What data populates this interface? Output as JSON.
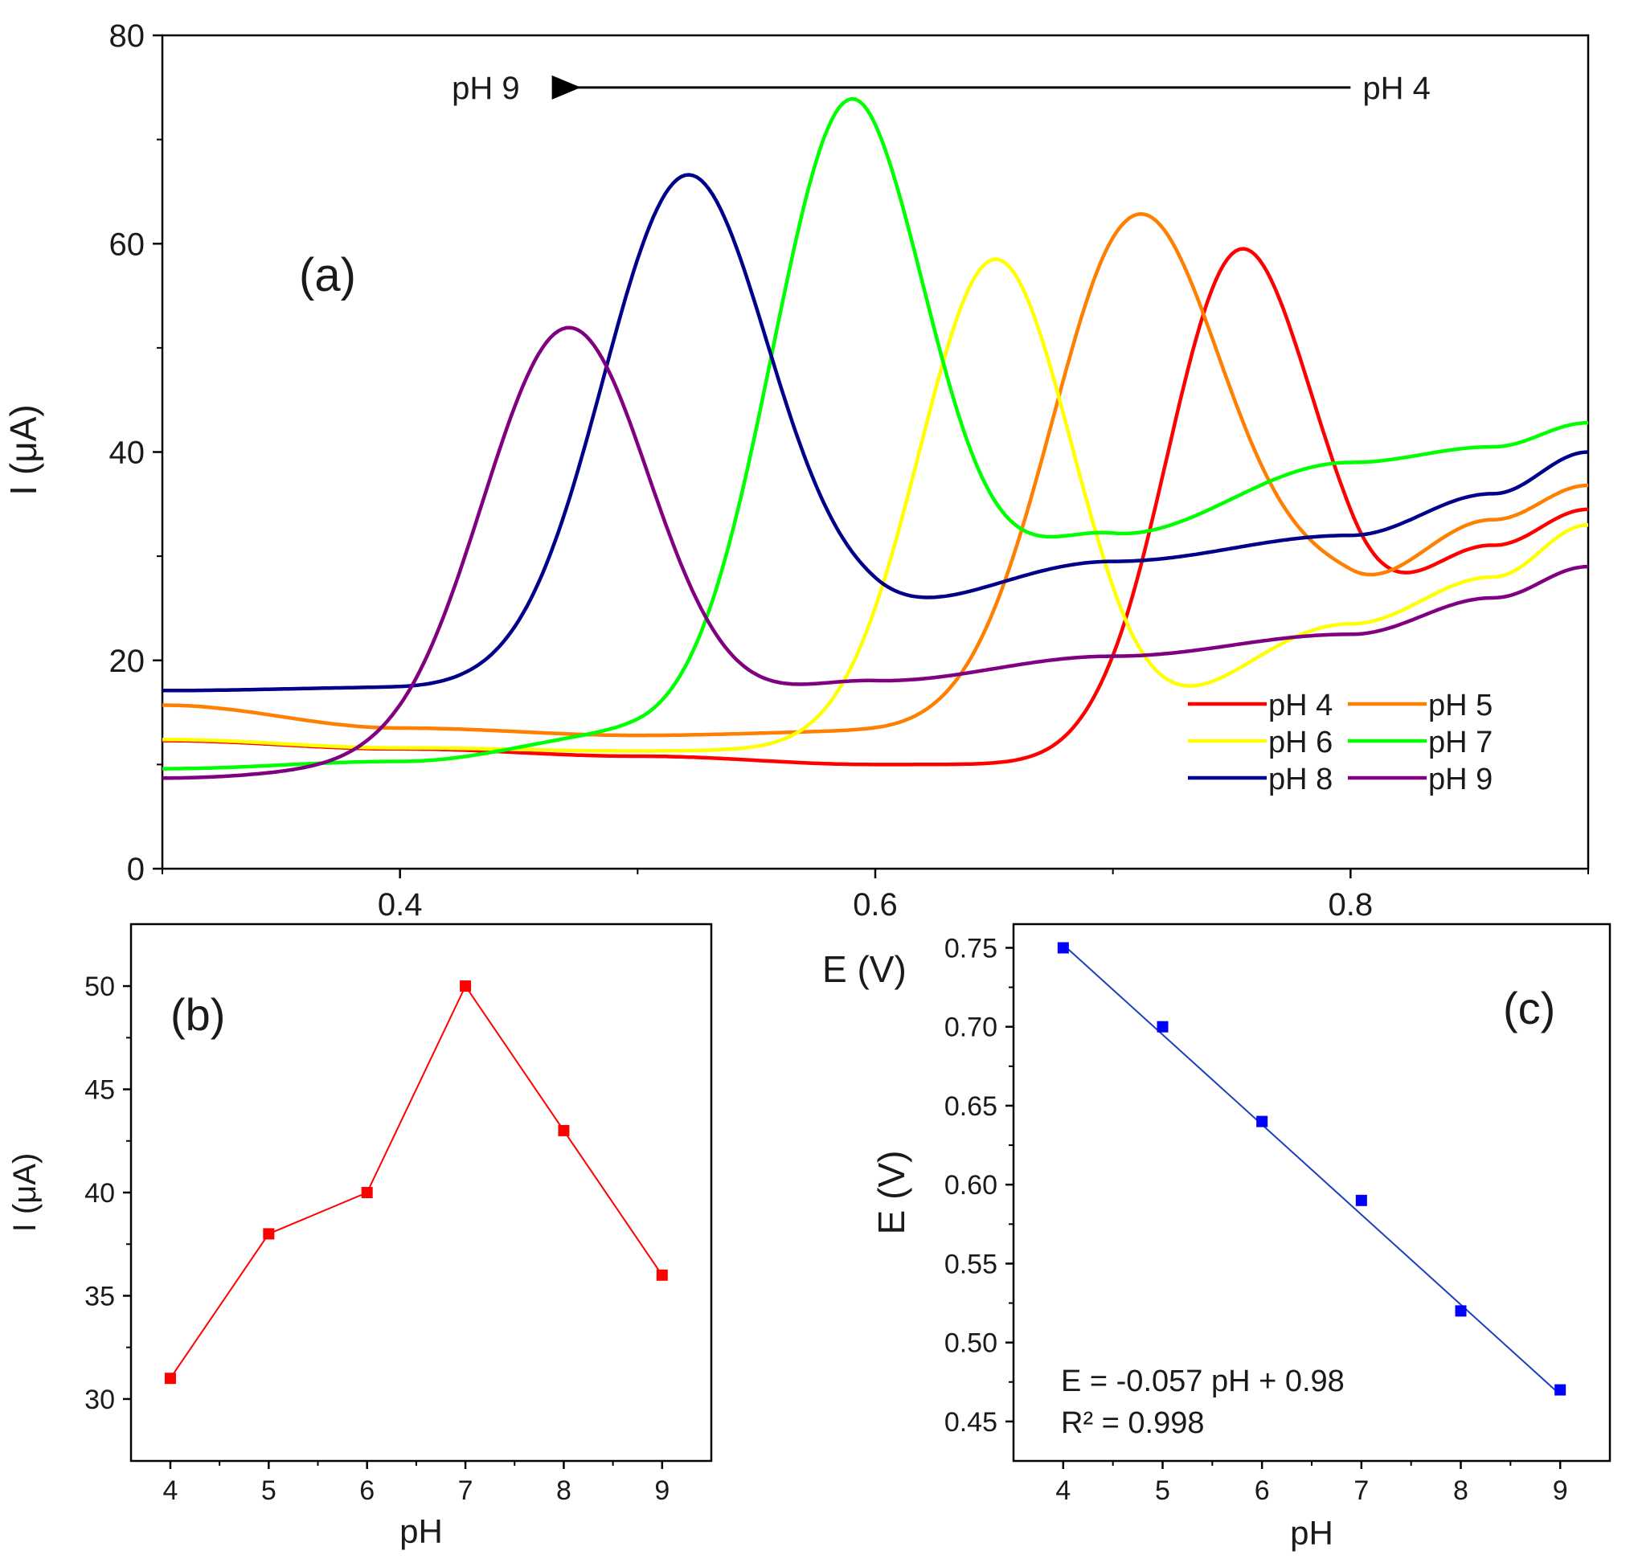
{
  "chart_data": [
    {
      "panel": "a",
      "type": "line",
      "panel_label": "(a)",
      "title": "",
      "xlabel": "",
      "ylabel": "I (μA)",
      "xlim": [
        0.3,
        0.9
      ],
      "ylim": [
        0,
        80
      ],
      "xticks": [
        0.4,
        0.6,
        0.8
      ],
      "xtick_labels": [
        "0.4",
        "0.6",
        "0.8"
      ],
      "yticks": [
        0,
        20,
        40,
        60,
        80
      ],
      "ytick_labels": [
        "0",
        "20",
        "40",
        "60",
        "80"
      ],
      "grid": false,
      "legend_position": "lower-right",
      "annotation": {
        "left_label": "pH 9",
        "right_label": "pH 4",
        "arrow_from": 0.8,
        "arrow_to": 0.47,
        "arrow_y": 75
      },
      "series": [
        {
          "name": "pH 4",
          "color": "#ff0000",
          "peak_x": 0.75,
          "peak_height": 42,
          "width": 0.03,
          "baseline": [
            [
              0.3,
              12.3
            ],
            [
              0.4,
              11.5
            ],
            [
              0.5,
              10.8
            ],
            [
              0.6,
              10.0
            ],
            [
              0.7,
              10.0
            ],
            [
              0.8,
              24.0
            ],
            [
              0.86,
              31.0
            ],
            [
              0.9,
              34.5
            ]
          ]
        },
        {
          "name": "pH 5",
          "color": "#ff7f00",
          "peak_x": 0.71,
          "peak_height": 48,
          "width": 0.035,
          "baseline": [
            [
              0.3,
              15.7
            ],
            [
              0.4,
              13.5
            ],
            [
              0.5,
              12.8
            ],
            [
              0.6,
              13.2
            ],
            [
              0.7,
              14.5
            ],
            [
              0.8,
              27.0
            ],
            [
              0.86,
              33.5
            ],
            [
              0.9,
              36.8
            ]
          ]
        },
        {
          "name": "pH 6",
          "color": "#ffff00",
          "peak_x": 0.65,
          "peak_height": 46,
          "width": 0.032,
          "baseline": [
            [
              0.3,
              12.4
            ],
            [
              0.4,
              11.6
            ],
            [
              0.5,
              11.3
            ],
            [
              0.6,
              11.5
            ],
            [
              0.7,
              13.5
            ],
            [
              0.8,
              23.5
            ],
            [
              0.86,
              28.0
            ],
            [
              0.9,
              33.0
            ]
          ]
        },
        {
          "name": "pH 7",
          "color": "#00ff00",
          "peak_x": 0.59,
          "peak_height": 57,
          "width": 0.033,
          "baseline": [
            [
              0.3,
              9.6
            ],
            [
              0.4,
              10.3
            ],
            [
              0.5,
              13.0
            ],
            [
              0.6,
              17.0
            ],
            [
              0.7,
              32.0
            ],
            [
              0.8,
              39.0
            ],
            [
              0.86,
              40.5
            ],
            [
              0.9,
              42.8
            ]
          ]
        },
        {
          "name": "pH 8",
          "color": "#00008b",
          "peak_x": 0.52,
          "peak_height": 47,
          "width": 0.034,
          "baseline": [
            [
              0.3,
              17.1
            ],
            [
              0.4,
              17.4
            ],
            [
              0.5,
              19.0
            ],
            [
              0.6,
              25.0
            ],
            [
              0.7,
              29.5
            ],
            [
              0.8,
              32.0
            ],
            [
              0.86,
              36.0
            ],
            [
              0.9,
              40.0
            ]
          ]
        },
        {
          "name": "pH 9",
          "color": "#800080",
          "peak_x": 0.47,
          "peak_height": 40,
          "width": 0.036,
          "baseline": [
            [
              0.3,
              8.7
            ],
            [
              0.4,
              9.7
            ],
            [
              0.5,
              12.5
            ],
            [
              0.6,
              18.0
            ],
            [
              0.7,
              20.4
            ],
            [
              0.8,
              22.5
            ],
            [
              0.86,
              26.0
            ],
            [
              0.9,
              29.0
            ]
          ]
        }
      ]
    },
    {
      "panel": "b",
      "type": "line",
      "panel_label": "(b)",
      "xlabel": "pH",
      "ylabel": "I (μA)",
      "xlim": [
        3.6,
        9.5
      ],
      "ylim": [
        27,
        53
      ],
      "xticks": [
        4,
        5,
        6,
        7,
        8,
        9
      ],
      "yticks": [
        30,
        35,
        40,
        45,
        50
      ],
      "grid": false,
      "series": [
        {
          "name": "I",
          "color": "#ff0000",
          "x": [
            4,
            5,
            6,
            7,
            8,
            9
          ],
          "y": [
            31,
            38,
            40,
            50,
            43,
            36
          ]
        }
      ]
    },
    {
      "panel": "c",
      "type": "scatter",
      "panel_label": "(c)",
      "xlabel": "pH",
      "ylabel": "E (V)",
      "ylabel_top": "E (V)",
      "xlim": [
        3.5,
        9.5
      ],
      "ylim": [
        0.425,
        0.765
      ],
      "xticks": [
        4,
        5,
        6,
        7,
        8,
        9
      ],
      "yticks": [
        0.45,
        0.5,
        0.55,
        0.6,
        0.65,
        0.7,
        0.75
      ],
      "ytick_labels": [
        "0.45",
        "0.50",
        "0.55",
        "0.60",
        "0.65",
        "0.70",
        "0.75"
      ],
      "grid": false,
      "equation": "E = -0.057 pH + 0.98",
      "r_squared": "R² = 0.998",
      "fit": {
        "x": [
          4,
          9
        ],
        "y": [
          0.752,
          0.467
        ]
      },
      "series": [
        {
          "name": "E",
          "color": "#0000ff",
          "x": [
            4,
            5,
            6,
            7,
            8,
            9
          ],
          "y": [
            0.75,
            0.7,
            0.64,
            0.59,
            0.52,
            0.47
          ]
        }
      ]
    }
  ]
}
